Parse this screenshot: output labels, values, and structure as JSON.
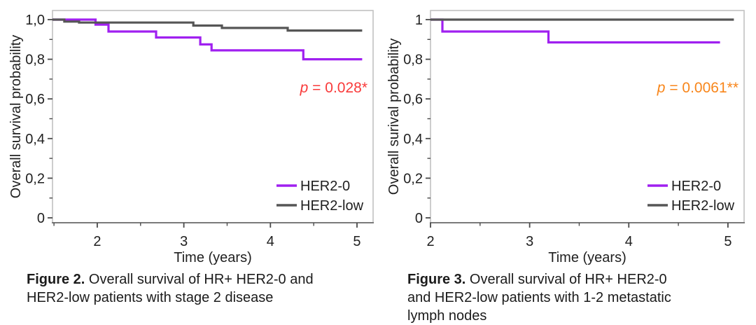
{
  "chart_data": [
    {
      "type": "line",
      "style": "kaplan-meier-step",
      "title": "",
      "xlabel": "Time (years)",
      "ylabel": "Overall survival probability",
      "xlim": [
        1.483,
        5.186
      ],
      "ylim": [
        0,
        1.046
      ],
      "xticks": [
        {
          "v": 2,
          "label": "2"
        },
        {
          "v": 3,
          "label": "3"
        },
        {
          "v": 4,
          "label": "4"
        },
        {
          "v": 5,
          "label": "5"
        }
      ],
      "xminor": [
        1.5,
        2.5,
        3.5,
        4.5
      ],
      "yticks": [
        {
          "v": 0,
          "label": "0"
        },
        {
          "v": 0.2,
          "label": "0,2"
        },
        {
          "v": 0.4,
          "label": "0,4"
        },
        {
          "v": 0.6,
          "label": "0,6"
        },
        {
          "v": 0.8,
          "label": "0,8"
        },
        {
          "v": 1,
          "label": "1,0"
        }
      ],
      "yminor": [
        0.1,
        0.3,
        0.5,
        0.7,
        0.9
      ],
      "grid": false,
      "legend_position": "bottom-right-inside",
      "series": [
        {
          "name": "HER2-0",
          "color": "#a020f0",
          "end": 5.06,
          "steps": [
            [
              1.483,
              1.0
            ],
            [
              1.98,
              0.975
            ],
            [
              2.13,
              0.94
            ],
            [
              2.68,
              0.91
            ],
            [
              3.19,
              0.875
            ],
            [
              3.32,
              0.845
            ],
            [
              4.38,
              0.8
            ]
          ]
        },
        {
          "name": "HER2-low",
          "color": "#565656",
          "end": 5.06,
          "steps": [
            [
              1.483,
              1.0
            ],
            [
              1.62,
              0.99
            ],
            [
              1.79,
              0.985
            ],
            [
              3.11,
              0.97
            ],
            [
              3.44,
              0.958
            ],
            [
              4.2,
              0.945
            ]
          ]
        }
      ],
      "p_annotation": {
        "var": "p",
        "rest": " = 0.028*",
        "color": "#f93a3a"
      },
      "caption": {
        "label": "Figure 2.",
        "text": " Overall survival of HR+ HER2-0 and\nHER2-low patients with stage 2 disease"
      }
    },
    {
      "type": "line",
      "style": "kaplan-meier-step",
      "title": "",
      "xlabel": "Time (years)",
      "ylabel": "Overall surival probability",
      "xlim": [
        2,
        5.163
      ],
      "ylim": [
        0,
        1.046
      ],
      "xticks": [
        {
          "v": 2,
          "label": "2"
        },
        {
          "v": 3,
          "label": "3"
        },
        {
          "v": 4,
          "label": "4"
        },
        {
          "v": 5,
          "label": "5"
        }
      ],
      "xminor": [
        2.5,
        3.5,
        4.5
      ],
      "yticks": [
        {
          "v": 0,
          "label": "0"
        },
        {
          "v": 0.2,
          "label": "0,2"
        },
        {
          "v": 0.4,
          "label": "0,4"
        },
        {
          "v": 0.6,
          "label": "0,6"
        },
        {
          "v": 0.8,
          "label": "0,8"
        },
        {
          "v": 1,
          "label": "1"
        }
      ],
      "yminor": [
        0.1,
        0.3,
        0.5,
        0.7,
        0.9
      ],
      "grid": false,
      "legend_position": "bottom-right-inside",
      "series": [
        {
          "name": "HER2-0",
          "color": "#a020f0",
          "end": 4.92,
          "steps": [
            [
              2.0,
              1.0
            ],
            [
              2.12,
              0.94
            ],
            [
              3.19,
              0.885
            ]
          ]
        },
        {
          "name": "HER2-low",
          "color": "#565656",
          "end": 5.06,
          "steps": [
            [
              2.0,
              1.0
            ]
          ]
        }
      ],
      "p_annotation": {
        "var": "p",
        "rest": " = 0.0061**",
        "color": "#f8861b"
      },
      "caption": {
        "label": "Figure 3.",
        "text": " Overall survival of HR+ HER2-0\nand HER2-low patients with 1-2 metastatic\nlymph nodes"
      }
    }
  ],
  "colors": {
    "her2_0": "#a020f0",
    "her2_low": "#565656",
    "p_red": "#f93a3a",
    "p_orange": "#f8861b",
    "plot_border": "#c1c1c1",
    "axis_line": "#7a7a7a",
    "text": "#1f1f1f"
  }
}
